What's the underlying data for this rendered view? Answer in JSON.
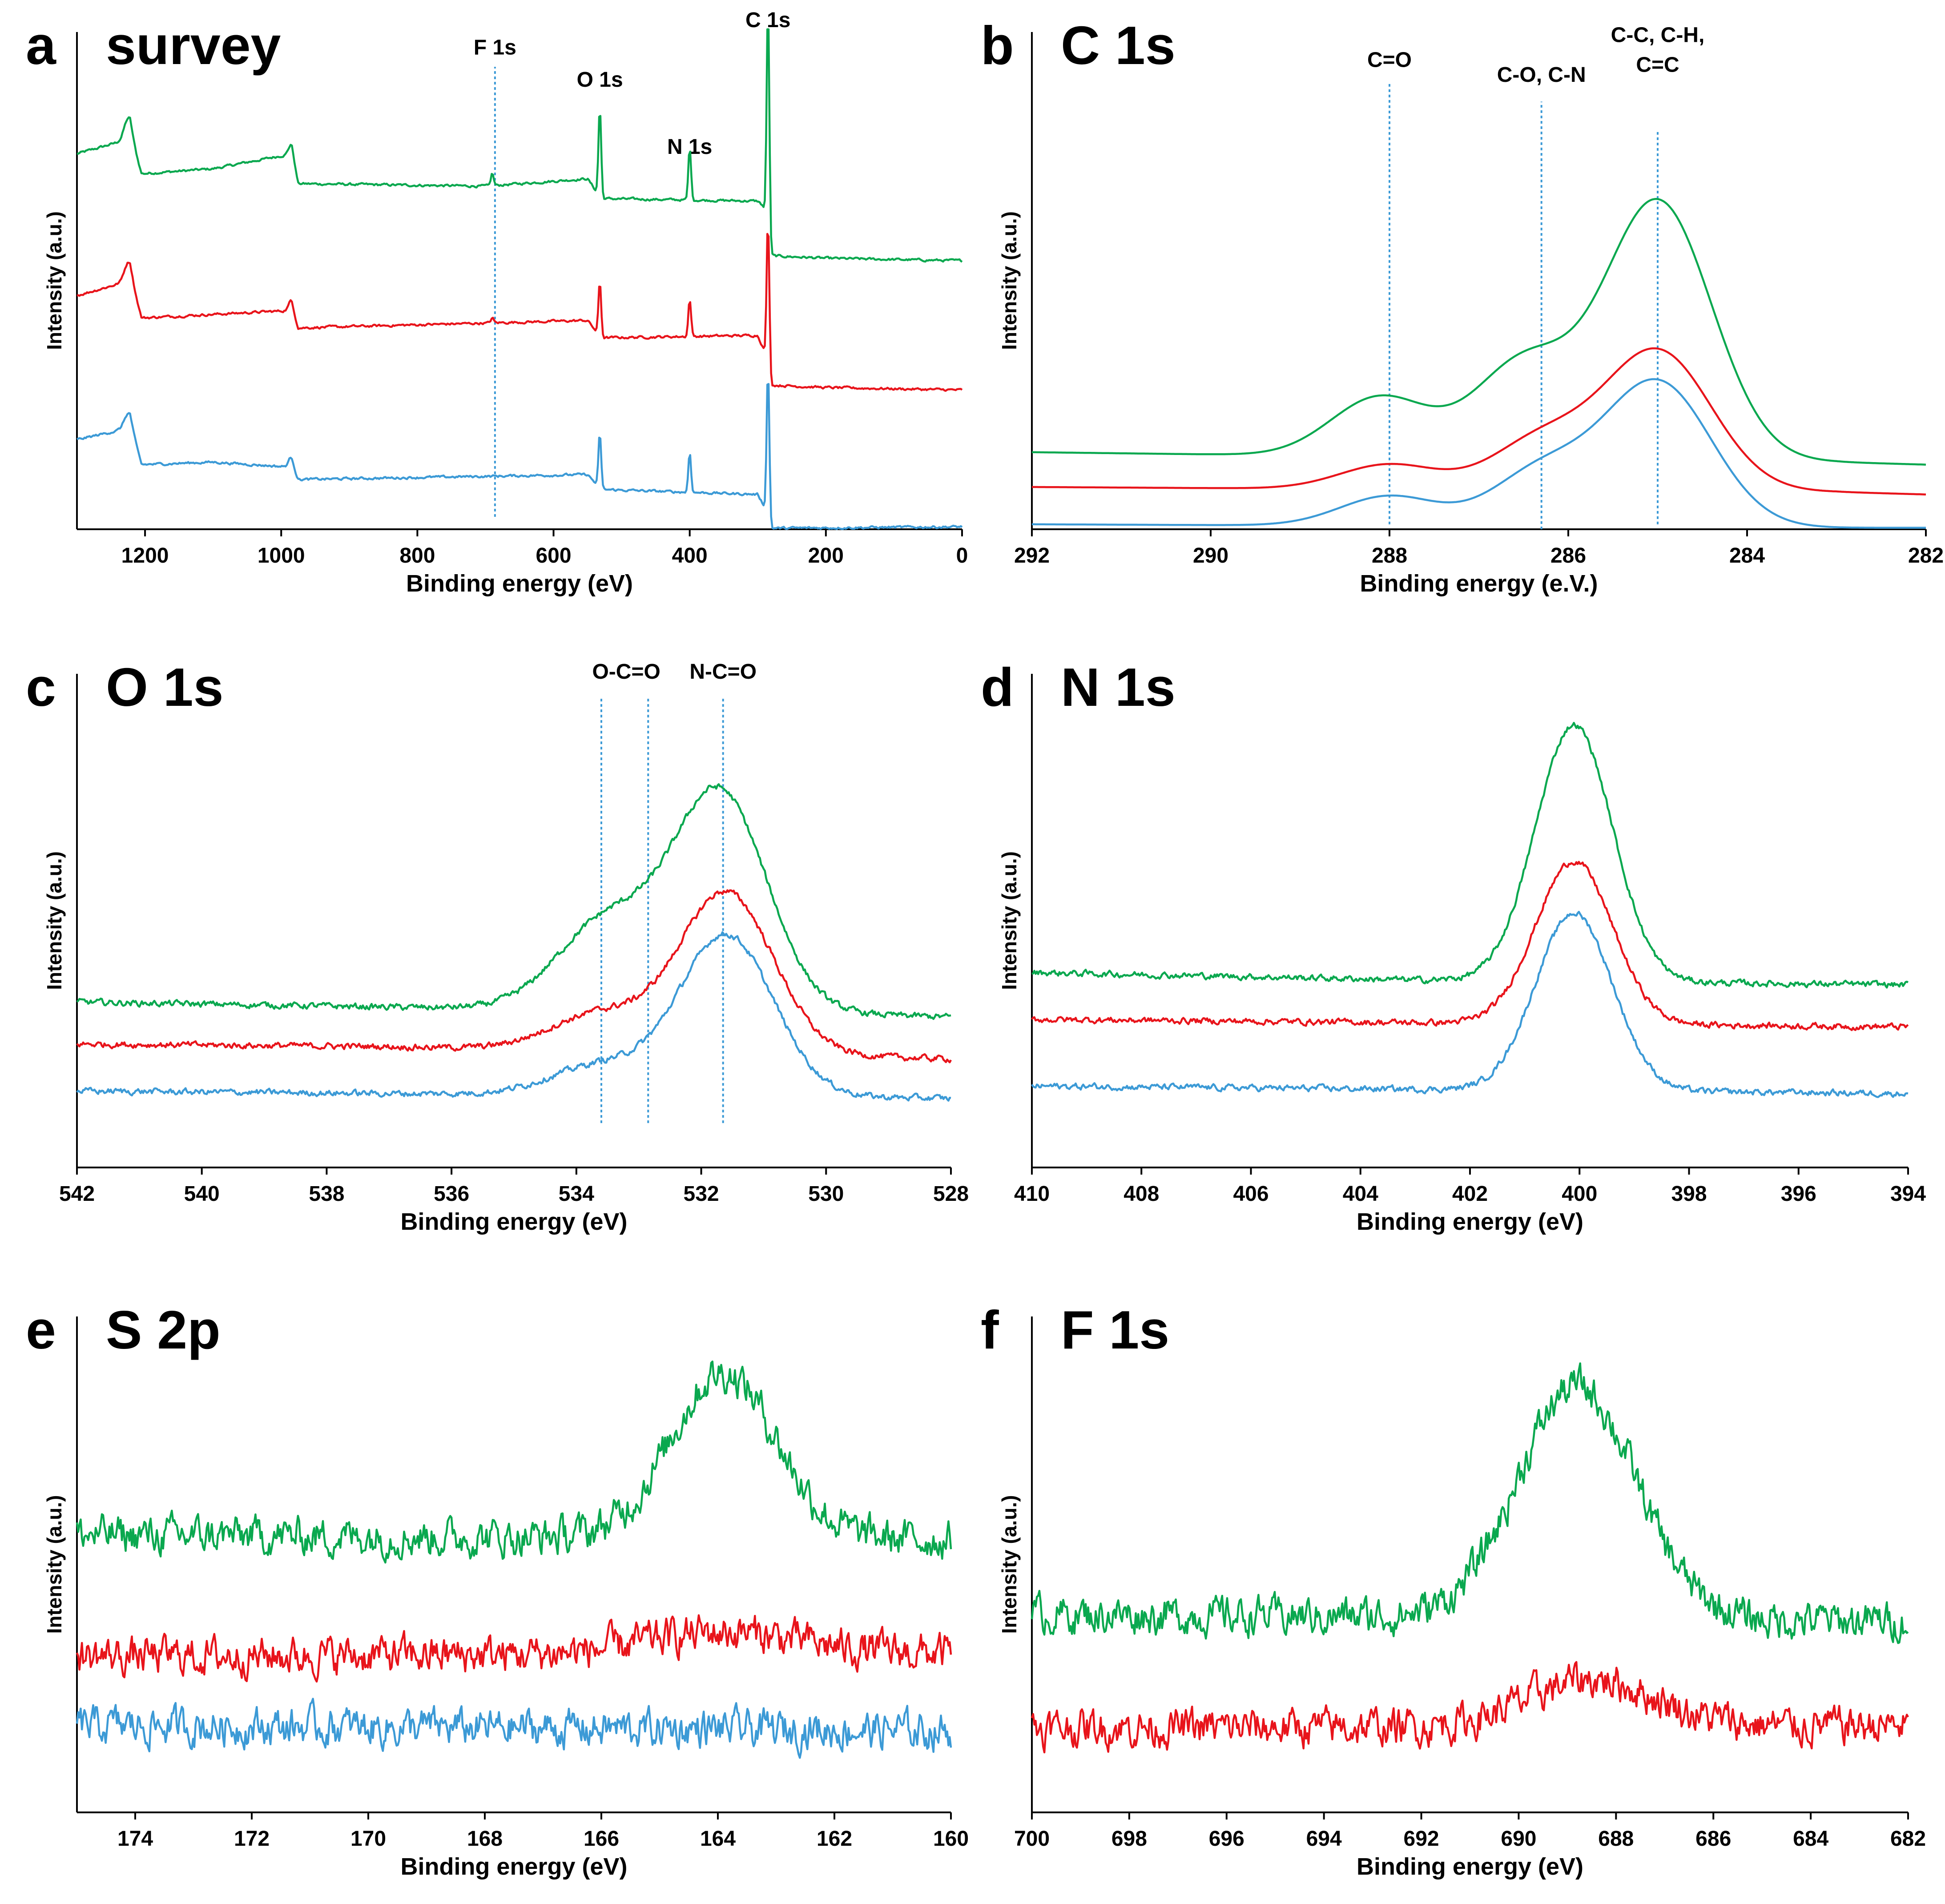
{
  "colors": {
    "green": "#0aa84f",
    "red": "#e8141b",
    "blue": "#3c9ad6",
    "refline": "#3c9ad6",
    "axis": "#000000"
  },
  "chart_data": [
    {
      "id": "a",
      "type": "line",
      "letter": "a",
      "title": "survey",
      "xlabel": "Binding energy (eV)",
      "ylabel": "Intensity (a.u.)",
      "xlim": [
        1300,
        0
      ],
      "xticks": [
        1200,
        1000,
        800,
        600,
        400,
        200,
        0
      ],
      "ylim": [
        0,
        10
      ],
      "noise": 0.02,
      "series": [
        {
          "name": "green",
          "color": "#0aa84f",
          "baseline": [
            [
              1300,
              7.55
            ],
            [
              1235,
              7.8
            ],
            [
              1222,
              7.95
            ],
            [
              1205,
              7.15
            ],
            [
              1100,
              7.25
            ],
            [
              985,
              7.55
            ],
            [
              975,
              6.95
            ],
            [
              700,
              6.9
            ],
            [
              550,
              7.05
            ],
            [
              530,
              6.65
            ],
            [
              300,
              6.6
            ],
            [
              292,
              6.5
            ],
            [
              280,
              5.5
            ],
            [
              200,
              5.45
            ],
            [
              0,
              5.4
            ]
          ],
          "peaks": [
            [
              1225,
              0.35,
              6
            ],
            [
              985,
              0.2,
              4
            ],
            [
              690,
              0.25,
              2
            ],
            [
              532,
              1.8,
              2
            ],
            [
              400,
              1.05,
              2
            ],
            [
              285,
              4.6,
              2
            ]
          ]
        },
        {
          "name": "red",
          "color": "#e8141b",
          "baseline": [
            [
              1300,
              4.7
            ],
            [
              1235,
              4.95
            ],
            [
              1222,
              5.1
            ],
            [
              1205,
              4.25
            ],
            [
              985,
              4.4
            ],
            [
              975,
              4.05
            ],
            [
              550,
              4.2
            ],
            [
              530,
              3.85
            ],
            [
              300,
              3.9
            ],
            [
              292,
              3.65
            ],
            [
              280,
              2.9
            ],
            [
              200,
              2.85
            ],
            [
              0,
              2.8
            ]
          ],
          "peaks": [
            [
              1225,
              0.3,
              6
            ],
            [
              985,
              0.2,
              4
            ],
            [
              690,
              0.1,
              2
            ],
            [
              532,
              1.1,
              2
            ],
            [
              400,
              0.75,
              2
            ],
            [
              285,
              3.0,
              2
            ]
          ]
        },
        {
          "name": "blue",
          "color": "#3c9ad6",
          "baseline": [
            [
              1300,
              1.8
            ],
            [
              1235,
              2.0
            ],
            [
              1222,
              2.1
            ],
            [
              1205,
              1.3
            ],
            [
              1100,
              1.35
            ],
            [
              985,
              1.25
            ],
            [
              975,
              1.0
            ],
            [
              550,
              1.1
            ],
            [
              530,
              0.8
            ],
            [
              300,
              0.7
            ],
            [
              292,
              0.5
            ],
            [
              280,
              0.02
            ],
            [
              0,
              0.05
            ]
          ],
          "peaks": [
            [
              1225,
              0.25,
              6
            ],
            [
              985,
              0.2,
              4
            ],
            [
              532,
              1.1,
              2
            ],
            [
              400,
              0.8,
              2
            ],
            [
              285,
              3.0,
              2
            ]
          ]
        }
      ],
      "reflines": [
        {
          "x": 686,
          "y_from": 0.25,
          "y_to": 9.3,
          "label": "F 1s",
          "label_y": 9.55
        },
        {
          "x": 532,
          "y_from": null,
          "y_to": null,
          "label": "O 1s",
          "label_y": 8.9
        },
        {
          "x": 400,
          "y_from": null,
          "y_to": null,
          "label": "N 1s",
          "label_y": 7.55
        },
        {
          "x": 285,
          "y_from": null,
          "y_to": null,
          "label": "C 1s",
          "label_y": 10.1
        }
      ]
    },
    {
      "id": "b",
      "type": "line",
      "letter": "b",
      "title": "C 1s",
      "xlabel": "Binding energy (e.V.)",
      "ylabel": "Intensity (a.u.)",
      "xlim": [
        292,
        282
      ],
      "xticks": [
        292,
        290,
        288,
        286,
        284,
        282
      ],
      "ylim": [
        0,
        10
      ],
      "noise": 0,
      "series": [
        {
          "name": "green",
          "color": "#0aa84f",
          "baseline": [
            [
              292,
              1.55
            ],
            [
              283,
              1.35
            ],
            [
              282,
              1.3
            ]
          ],
          "peaks": [
            [
              285.0,
              5.2,
              0.6
            ],
            [
              286.5,
              1.9,
              0.55
            ],
            [
              288.1,
              1.2,
              0.55
            ]
          ]
        },
        {
          "name": "red",
          "color": "#e8141b",
          "baseline": [
            [
              292,
              0.85
            ],
            [
              283,
              0.75
            ],
            [
              282,
              0.7
            ]
          ],
          "peaks": [
            [
              285.0,
              2.8,
              0.6
            ],
            [
              286.3,
              1.0,
              0.55
            ],
            [
              288.0,
              0.5,
              0.55
            ]
          ]
        },
        {
          "name": "blue",
          "color": "#3c9ad6",
          "baseline": [
            [
              292,
              0.1
            ],
            [
              283,
              0.03
            ],
            [
              282,
              0.03
            ]
          ],
          "peaks": [
            [
              285.0,
              2.9,
              0.6
            ],
            [
              286.3,
              1.1,
              0.55
            ],
            [
              288.0,
              0.6,
              0.55
            ]
          ]
        }
      ],
      "reflines": [
        {
          "x": 288.0,
          "y_from": 0.1,
          "y_to": 9.0,
          "label": "C=O",
          "label_y": 9.3
        },
        {
          "x": 286.3,
          "y_from": 0.0,
          "y_to": 8.6,
          "label": "C-O, C-N",
          "label_y": 9.0
        },
        {
          "x": 285.0,
          "y_from": 0.1,
          "y_to": 8.0,
          "label": "C-C, C-H,",
          "label_y": 9.8
        },
        {
          "x": 285.0,
          "y_from": null,
          "y_to": null,
          "label": "C=C",
          "label_y": 9.2
        }
      ]
    },
    {
      "id": "c",
      "type": "line",
      "letter": "c",
      "title": "O 1s",
      "xlabel": "Binding energy (eV)",
      "ylabel": "Intensity (a.u.)",
      "xlim": [
        542,
        528
      ],
      "xticks": [
        542,
        540,
        538,
        536,
        534,
        532,
        530,
        528
      ],
      "ylim": [
        0,
        10
      ],
      "noise": 0.05,
      "series": [
        {
          "name": "green",
          "color": "#0aa84f",
          "baseline": [
            [
              542,
              3.35
            ],
            [
              537,
              3.25
            ],
            [
              531,
              3.15
            ],
            [
              528,
              3.05
            ]
          ],
          "peaks": [
            [
              531.7,
              4.4,
              0.75
            ],
            [
              533.5,
              1.8,
              0.8
            ]
          ]
        },
        {
          "name": "red",
          "color": "#e8141b",
          "baseline": [
            [
              542,
              2.5
            ],
            [
              537,
              2.45
            ],
            [
              531,
              2.3
            ],
            [
              528,
              2.2
            ]
          ],
          "peaks": [
            [
              531.6,
              3.25,
              0.75
            ],
            [
              533.6,
              0.75,
              0.8
            ]
          ]
        },
        {
          "name": "blue",
          "color": "#3c9ad6",
          "baseline": [
            [
              542,
              1.55
            ],
            [
              537,
              1.5
            ],
            [
              531,
              1.45
            ],
            [
              528,
              1.4
            ]
          ],
          "peaks": [
            [
              531.6,
              3.25,
              0.75
            ],
            [
              533.6,
              0.6,
              0.8
            ]
          ]
        }
      ],
      "reflines": [
        {
          "x": 533.6,
          "y_from": 0.9,
          "y_to": 9.5,
          "label": "O-C=O",
          "label_y": 9.9,
          "label_x": 533.2
        },
        {
          "x": 532.85,
          "y_from": 0.9,
          "y_to": 9.5,
          "label": "",
          "label_y": 9.9
        },
        {
          "x": 531.65,
          "y_from": 0.9,
          "y_to": 9.5,
          "label": "N-C=O",
          "label_y": 9.9
        }
      ]
    },
    {
      "id": "d",
      "type": "line",
      "letter": "d",
      "title": "N 1s",
      "xlabel": "Binding energy (eV)",
      "ylabel": "Intensity (a.u.)",
      "xlim": [
        410,
        394
      ],
      "xticks": [
        410,
        408,
        406,
        404,
        402,
        400,
        398,
        396,
        394
      ],
      "ylim": [
        0,
        10
      ],
      "noise": 0.05,
      "series": [
        {
          "name": "green",
          "color": "#0aa84f",
          "baseline": [
            [
              410,
              3.95
            ],
            [
              403,
              3.8
            ],
            [
              394,
              3.7
            ]
          ],
          "peaks": [
            [
              400.1,
              5.2,
              0.7
            ]
          ]
        },
        {
          "name": "red",
          "color": "#e8141b",
          "baseline": [
            [
              410,
              3.0
            ],
            [
              394,
              2.85
            ]
          ],
          "peaks": [
            [
              400.1,
              3.3,
              0.7
            ]
          ]
        },
        {
          "name": "blue",
          "color": "#3c9ad6",
          "baseline": [
            [
              410,
              1.65
            ],
            [
              394,
              1.5
            ]
          ],
          "peaks": [
            [
              400.1,
              3.6,
              0.7
            ]
          ]
        }
      ],
      "reflines": []
    },
    {
      "id": "e",
      "type": "line",
      "letter": "e",
      "title": "S 2p",
      "xlabel": "Binding energy (eV)",
      "ylabel": "Intensity (a.u.)",
      "xlim": [
        175,
        160
      ],
      "xticks": [
        174,
        172,
        170,
        168,
        166,
        164,
        162,
        160
      ],
      "ylim": [
        0,
        10
      ],
      "noise": 0.3,
      "series": [
        {
          "name": "green",
          "color": "#0aa84f",
          "baseline": [
            [
              175,
              5.6
            ],
            [
              160,
              5.5
            ]
          ],
          "peaks": [
            [
              163.9,
              3.35,
              0.9
            ]
          ]
        },
        {
          "name": "red",
          "color": "#e8141b",
          "baseline": [
            [
              175,
              3.15
            ],
            [
              160,
              3.2
            ]
          ],
          "peaks": [
            [
              163.9,
              0.45,
              1.3
            ]
          ]
        },
        {
          "name": "blue",
          "color": "#3c9ad6",
          "baseline": [
            [
              175,
              1.75
            ],
            [
              160,
              1.65
            ]
          ],
          "peaks": []
        }
      ],
      "reflines": []
    },
    {
      "id": "f",
      "type": "line",
      "letter": "f",
      "title": "F 1s",
      "xlabel": "Binding energy (eV)",
      "ylabel": "Intensity (a.u.)",
      "xlim": [
        700,
        682
      ],
      "xticks": [
        700,
        698,
        696,
        694,
        692,
        690,
        688,
        686,
        684,
        682
      ],
      "ylim": [
        0,
        10
      ],
      "noise": 0.3,
      "series": [
        {
          "name": "green",
          "color": "#0aa84f",
          "baseline": [
            [
              700,
              4.0
            ],
            [
              682,
              3.85
            ]
          ],
          "peaks": [
            [
              688.8,
              4.7,
              1.2
            ]
          ]
        },
        {
          "name": "red",
          "color": "#e8141b",
          "baseline": [
            [
              700,
              1.7
            ],
            [
              682,
              1.75
            ]
          ],
          "peaks": [
            [
              688.5,
              0.95,
              1.3
            ]
          ]
        }
      ],
      "reflines": []
    }
  ]
}
